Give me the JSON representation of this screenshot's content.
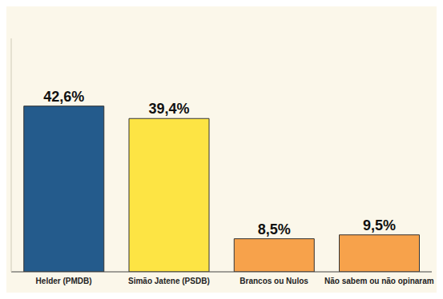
{
  "chart_data": {
    "type": "bar",
    "categories": [
      "Helder (PMDB)",
      "Simão Jatene (PSDB)",
      "Brancos ou Nulos",
      "Não sabem ou não opinaram"
    ],
    "values": [
      42.6,
      39.4,
      8.5,
      9.5
    ],
    "value_labels": [
      "42,6%",
      "39,4%",
      "8,5%",
      "9,5%"
    ],
    "colors": [
      "#245b8c",
      "#fde444",
      "#f7a24b",
      "#f7a24b"
    ],
    "ylim": [
      0,
      60
    ],
    "data_labels": true,
    "tick_labels": "x"
  }
}
